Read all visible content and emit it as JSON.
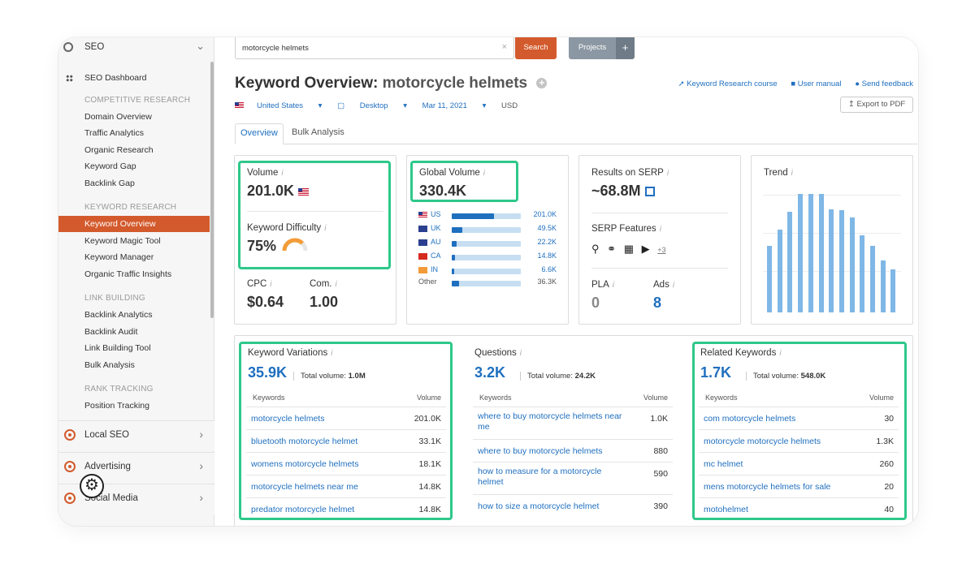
{
  "sidebar": {
    "header": "SEO",
    "dashboard": "SEO Dashboard",
    "sections": [
      {
        "caption": "COMPETITIVE RESEARCH",
        "items": [
          "Domain Overview",
          "Traffic Analytics",
          "Organic Research",
          "Keyword Gap",
          "Backlink Gap"
        ]
      },
      {
        "caption": "KEYWORD RESEARCH",
        "items": [
          "Keyword Overview",
          "Keyword Magic Tool",
          "Keyword Manager",
          "Organic Traffic Insights"
        ]
      },
      {
        "caption": "LINK BUILDING",
        "items": [
          "Backlink Analytics",
          "Backlink Audit",
          "Link Building Tool",
          "Bulk Analysis"
        ]
      },
      {
        "caption": "RANK TRACKING",
        "items": [
          "Position Tracking"
        ]
      }
    ],
    "groups": [
      "Local SEO",
      "Advertising",
      "Social Media"
    ]
  },
  "search": {
    "value": "motorcycle helmets",
    "button": "Search",
    "projects": "Projects",
    "plus": "+"
  },
  "title": {
    "prefix": "Keyword Overview:",
    "keyword": "motorcycle helmets"
  },
  "links": {
    "course": "Keyword Research course",
    "manual": "User manual",
    "feedback": "Send feedback",
    "export": "Export to PDF"
  },
  "filters": {
    "country": "United States",
    "device": "Desktop",
    "date": "Mar 11, 2021",
    "currency": "USD"
  },
  "tabs": [
    "Overview",
    "Bulk Analysis"
  ],
  "volume": {
    "label": "Volume",
    "value": "201.0K"
  },
  "difficulty": {
    "label": "Keyword Difficulty",
    "value": "75%",
    "level": 75
  },
  "cpc": {
    "label": "CPC",
    "value": "$0.64"
  },
  "com": {
    "label": "Com.",
    "value": "1.00"
  },
  "global": {
    "label": "Global Volume",
    "value": "330.4K",
    "countries": [
      {
        "code": "US",
        "value": "201.0K",
        "share": 0.61
      },
      {
        "code": "UK",
        "value": "49.5K",
        "share": 0.15
      },
      {
        "code": "AU",
        "value": "22.2K",
        "share": 0.07
      },
      {
        "code": "CA",
        "value": "14.8K",
        "share": 0.045
      },
      {
        "code": "IN",
        "value": "6.6K",
        "share": 0.02
      }
    ],
    "other": {
      "label": "Other",
      "value": "36.3K",
      "share": 0.11
    }
  },
  "serp": {
    "label": "Results on SERP",
    "value": "~68.8M",
    "features_label": "SERP Features",
    "features_more": "+3",
    "pla_label": "PLA",
    "pla_value": "0",
    "ads_label": "Ads",
    "ads_value": "8"
  },
  "trend": {
    "label": "Trend",
    "levels": [
      0.56,
      0.7,
      0.85,
      1.0,
      1.0,
      1.0,
      0.87,
      0.86,
      0.8,
      0.65,
      0.56,
      0.44,
      0.36
    ]
  },
  "variations": {
    "label": "Keyword Variations",
    "count": "35.9K",
    "total_label": "Total volume:",
    "total": "1.0M",
    "col_kw": "Keywords",
    "col_vol": "Volume",
    "rows": [
      {
        "k": "motorcycle helmets",
        "v": "201.0K"
      },
      {
        "k": "bluetooth motorcycle helmet",
        "v": "33.1K"
      },
      {
        "k": "womens motorcycle helmets",
        "v": "18.1K"
      },
      {
        "k": "motorcycle helmets near me",
        "v": "14.8K"
      },
      {
        "k": "predator motorcycle helmet",
        "v": "14.8K"
      }
    ]
  },
  "questions": {
    "label": "Questions",
    "count": "3.2K",
    "total_label": "Total volume:",
    "total": "24.2K",
    "col_kw": "Keywords",
    "col_vol": "Volume",
    "rows": [
      {
        "k": "where to buy motorcycle helmets near me",
        "v": "1.0K"
      },
      {
        "k": "where to buy motorcycle helmets",
        "v": "880"
      },
      {
        "k": "how to measure for a motorcycle helmet",
        "v": "590"
      },
      {
        "k": "how to size a motorcycle helmet",
        "v": "390"
      }
    ]
  },
  "related": {
    "label": "Related Keywords",
    "count": "1.7K",
    "total_label": "Total volume:",
    "total": "548.0K",
    "col_kw": "Keywords",
    "col_vol": "Volume",
    "rows": [
      {
        "k": "com motorcycle helmets",
        "v": "30"
      },
      {
        "k": "motorcycle motorcycle helmets",
        "v": "1.3K"
      },
      {
        "k": "mc helmet",
        "v": "260"
      },
      {
        "k": "mens motorcycle helmets for sale",
        "v": "20"
      },
      {
        "k": "motohelmet",
        "v": "40"
      }
    ]
  },
  "colors": {
    "accent": "#d35a2c",
    "link": "#1f6fbf",
    "highlight": "#2ec88a"
  }
}
